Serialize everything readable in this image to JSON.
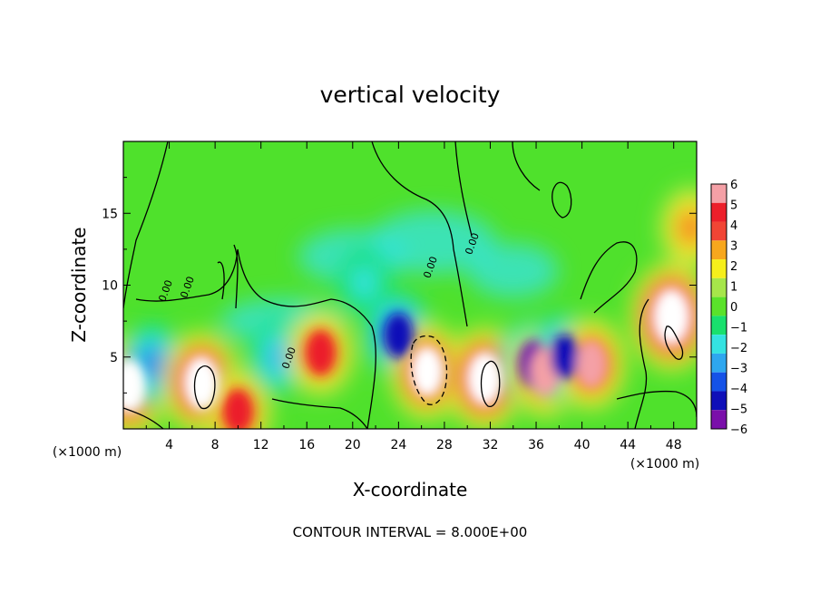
{
  "chart_data": {
    "type": "heatmap",
    "title": "vertical velocity",
    "xlabel": "X-coordinate",
    "ylabel": "Z-coordinate",
    "x_unit_label": "(×1000 m)",
    "x_unit_label_2": "(×1000 m)",
    "xlim": [
      0,
      50
    ],
    "ylim": [
      0,
      20
    ],
    "x_ticks": [
      4,
      8,
      12,
      16,
      20,
      24,
      28,
      32,
      36,
      40,
      44,
      48
    ],
    "x_tick_labels": [
      "4",
      "8",
      "12",
      "16",
      "20",
      "24",
      "28",
      "32",
      "36",
      "40",
      "44",
      "48"
    ],
    "y_ticks": [
      5,
      10,
      15
    ],
    "y_tick_labels": [
      "5",
      "10",
      "15"
    ],
    "colorbar": {
      "levels": [
        6,
        5,
        4,
        3,
        2,
        1,
        0,
        -1,
        -2,
        -3,
        -4,
        -5,
        -6
      ],
      "labels": [
        "6",
        "5",
        "4",
        "3",
        "2",
        "1",
        "0",
        "−1",
        "−2",
        "−3",
        "−4",
        "−5",
        "−6"
      ],
      "colors": [
        "#f4a0a6",
        "#ec1f2a",
        "#f14535",
        "#f7a71d",
        "#f6ef1b",
        "#a6e64a",
        "#5ae22a",
        "#19e06d",
        "#34e3e1",
        "#2ea7ef",
        "#1552e7",
        "#0f0fb8",
        "#7a0faa"
      ]
    },
    "contour_interval_text": "CONTOUR INTERVAL = 8.000E+00",
    "contour_labels": [
      "0.00",
      "0.00",
      "0.00",
      "0.00",
      "0.00"
    ],
    "features": [
      {
        "x": 0.5,
        "z": 3.0,
        "w": 8
      },
      {
        "x": 2.5,
        "z": 4.5,
        "w": -4
      },
      {
        "x": 6.8,
        "z": 3.2,
        "w": 8
      },
      {
        "x": 10,
        "z": 1.2,
        "w": 5
      },
      {
        "x": 13.5,
        "z": 5.0,
        "w": -3
      },
      {
        "x": 17.2,
        "z": 5.3,
        "w": 5
      },
      {
        "x": 21.0,
        "z": 10.2,
        "w": -2
      },
      {
        "x": 24.0,
        "z": 6.5,
        "w": -5
      },
      {
        "x": 26.5,
        "z": 4.0,
        "w": 7
      },
      {
        "x": 31.5,
        "z": 3.5,
        "w": 8
      },
      {
        "x": 35.8,
        "z": 4.5,
        "w": -6
      },
      {
        "x": 36.8,
        "z": 4.0,
        "w": 6
      },
      {
        "x": 38.5,
        "z": 5.0,
        "w": -5
      },
      {
        "x": 40.8,
        "z": 4.5,
        "w": 6
      },
      {
        "x": 47.8,
        "z": 7.8,
        "w": 9
      },
      {
        "x": 49.5,
        "z": 14.0,
        "w": 4
      }
    ]
  }
}
